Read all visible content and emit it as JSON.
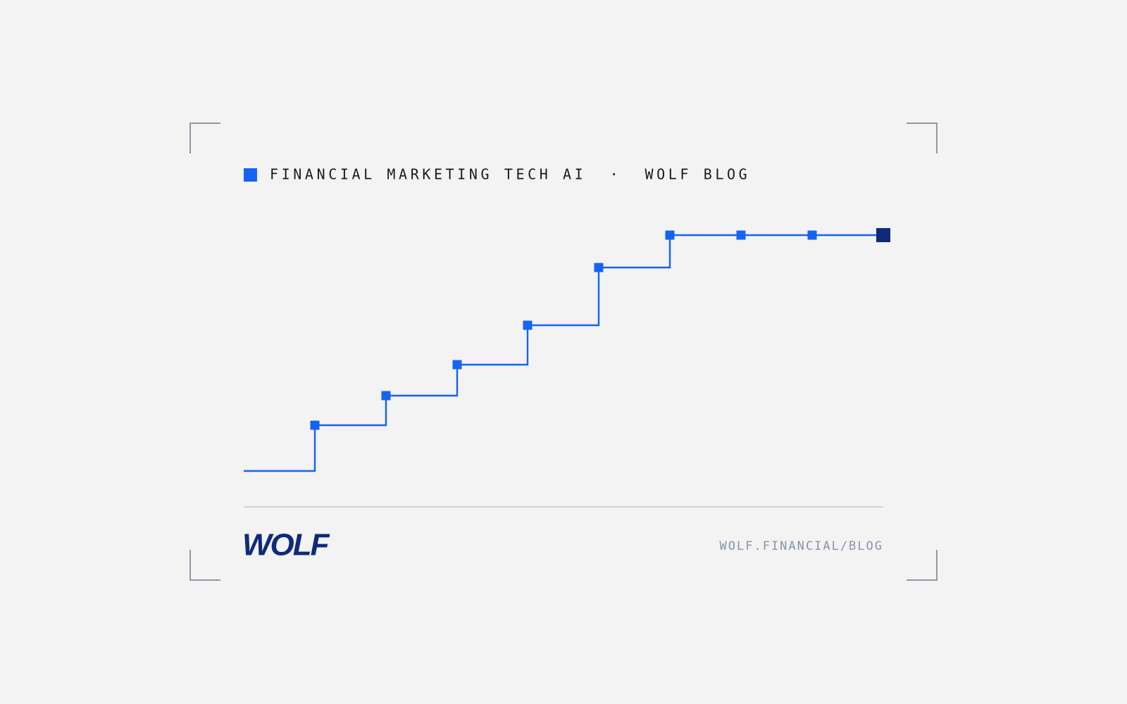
{
  "header": {
    "topic": "FINANCIAL MARKETING TECH AI  ·  WOLF BLOG"
  },
  "footer": {
    "logo": "WOLF",
    "url": "WOLF.FINANCIAL/BLOG"
  }
}
